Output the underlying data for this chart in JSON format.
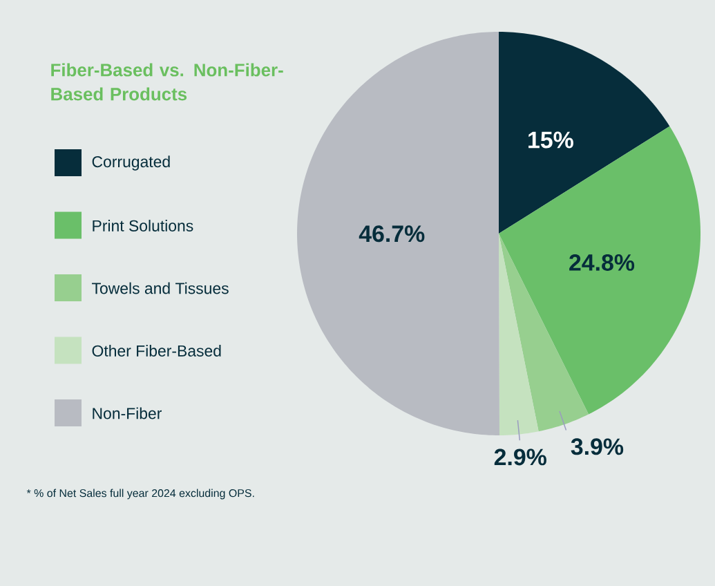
{
  "chart_data": {
    "type": "pie",
    "title": "Fiber-Based vs. Non-Fiber-Based Products",
    "categories": [
      "Corrugated",
      "Print Solutions",
      "Towels and Tissues",
      "Other Fiber-Based",
      "Non-Fiber"
    ],
    "values": [
      15,
      24.8,
      3.9,
      2.9,
      46.7
    ],
    "value_labels": [
      "15%",
      "24.8%",
      "3.9%",
      "2.9%",
      "46.7%"
    ],
    "colors": [
      "#062d3b",
      "#6abf69",
      "#97cf8f",
      "#c5e2bf",
      "#b8bbc2"
    ],
    "legend": "left",
    "annotations": [
      "* % of Net Sales full year 2024 excluding OPS."
    ]
  }
}
